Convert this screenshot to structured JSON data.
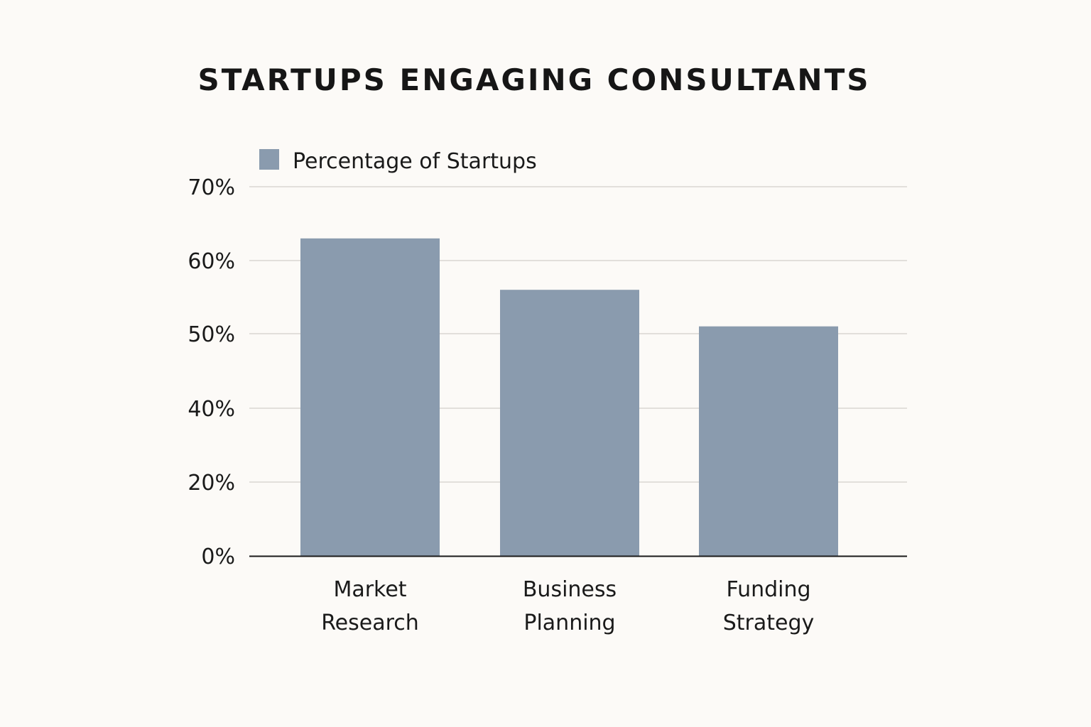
{
  "chart_data": {
    "type": "bar",
    "title": "STARTUPS ENGAGING CONSULTANTS",
    "categories": [
      "Market Research",
      "Business Planning",
      "Funding Strategy"
    ],
    "category_lines": [
      [
        "Market",
        "Research"
      ],
      [
        "Business",
        "Planning"
      ],
      [
        "Funding",
        "Strategy"
      ]
    ],
    "series": [
      {
        "name": "Percentage of Startups",
        "values": [
          63,
          56,
          51
        ]
      }
    ],
    "y_ticks": [
      0,
      20,
      40,
      50,
      60,
      70
    ],
    "y_tick_labels": [
      "0%",
      "20%",
      "40%",
      "50%",
      "60%",
      "70%"
    ],
    "ylim": [
      0,
      70
    ],
    "grid": true,
    "legend_position": "top-left",
    "colors": {
      "bar": "#8a9bae",
      "grid": "#d9d6d2",
      "axis": "#1a1a1a",
      "background": "#fcfaf7"
    }
  }
}
